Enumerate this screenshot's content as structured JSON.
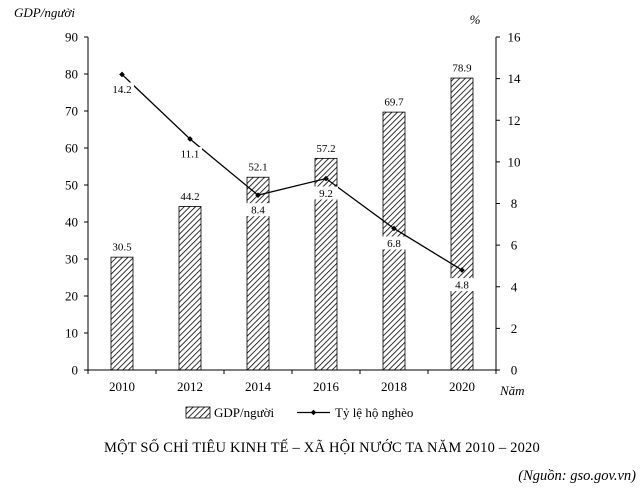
{
  "chart_data": {
    "type": "bar",
    "title": "MỘT SỐ CHỈ TIÊU KINH TẾ – XÃ HỘI NƯỚC TA NĂM 2010 – 2020",
    "source": "(Nguồn: gso.gov.vn)",
    "categories": [
      "2010",
      "2012",
      "2014",
      "2016",
      "2018",
      "2020"
    ],
    "x_unit": "Năm",
    "y_left": {
      "label": "GDP/người",
      "ticks": [
        "0",
        "10",
        "20",
        "30",
        "40",
        "50",
        "60",
        "70",
        "80",
        "90"
      ],
      "range": [
        0,
        90
      ]
    },
    "y_right": {
      "label": "%",
      "ticks": [
        "0",
        "2",
        "4",
        "6",
        "8",
        "10",
        "12",
        "14",
        "16"
      ],
      "range": [
        0,
        16
      ]
    },
    "series": [
      {
        "name": "GDP/người",
        "kind": "bar",
        "axis": "left",
        "values": [
          30.5,
          44.2,
          52.1,
          57.2,
          69.7,
          78.9
        ],
        "labels": [
          "30.5",
          "44.2",
          "52.1",
          "57.2",
          "69.7",
          "78.9"
        ]
      },
      {
        "name": "Tỷ lệ hộ nghèo",
        "kind": "line",
        "axis": "right",
        "values": [
          14.2,
          11.1,
          8.4,
          9.2,
          6.8,
          4.8
        ],
        "labels": [
          "14.2",
          "11.1",
          "8.4",
          "9.2",
          "6.8",
          "4.8"
        ]
      }
    ],
    "legend": {
      "position": "bottom",
      "items": [
        "GDP/người",
        "Tỷ lệ hộ nghèo"
      ]
    }
  }
}
